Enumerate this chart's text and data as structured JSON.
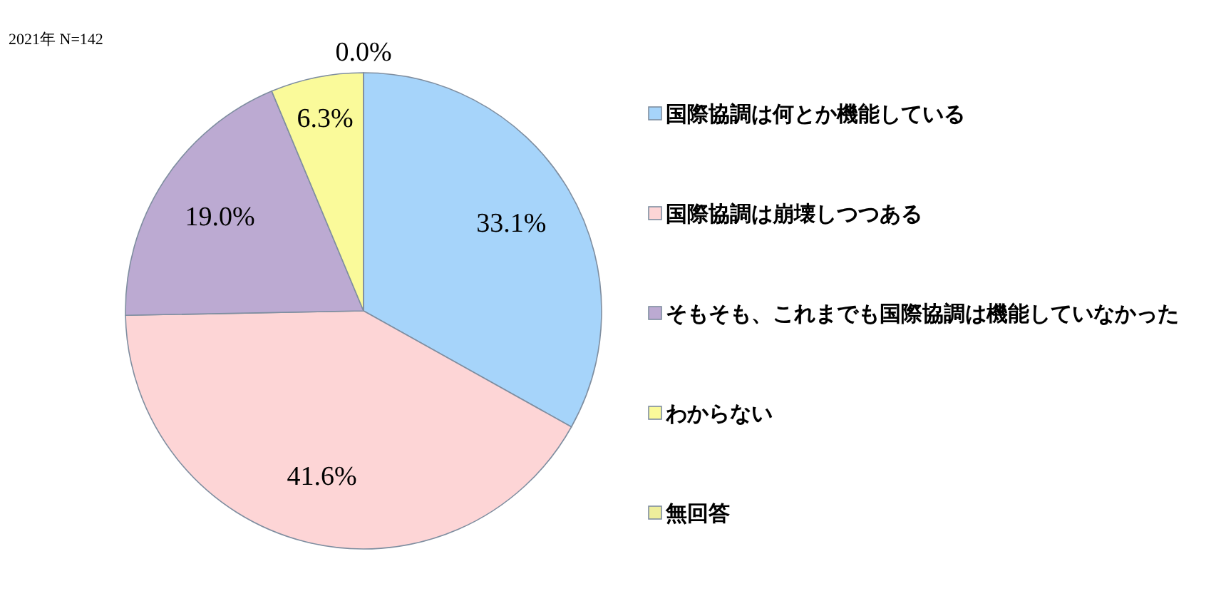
{
  "chart_data": {
    "type": "pie",
    "title": "2021年 N=142",
    "categories": [
      "国際協調は何とか機能している",
      "国際協調は崩壊しつつある",
      "そもそも、これまでも国際協調は機能していなかった",
      "わからない",
      "無回答"
    ],
    "values": [
      33.1,
      41.6,
      19.0,
      6.3,
      0.0
    ],
    "colors": [
      "#a6d4fa",
      "#fdd5d6",
      "#bcaad2",
      "#fafa9a",
      "#eeee9c"
    ],
    "value_labels": [
      "33.1%",
      "41.6%",
      "19.0%",
      "6.3%",
      "0.0%"
    ],
    "legend": "right"
  }
}
